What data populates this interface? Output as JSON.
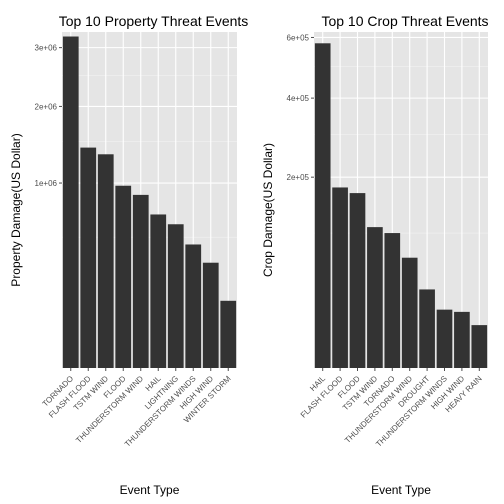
{
  "chart_data": [
    {
      "type": "bar",
      "title": "Top 10 Property Threat Events",
      "xlabel": "Event Type",
      "ylabel": "Property Damage(US Dollar)",
      "scale": "sqrt",
      "ylim": [
        0,
        3300000
      ],
      "yticks": [
        1000000,
        2000000,
        3000000
      ],
      "ytick_labels": [
        "1e+06",
        "2e+06",
        "3e+06"
      ],
      "grid": true,
      "categories": [
        "TORNADO",
        "FLASH FLOOD",
        "TSTM WIND",
        "FLOOD",
        "THUNDERSTORM WIND",
        "HAIL",
        "LIGHTNING",
        "THUNDERSTORM WINDS",
        "HIGH WIND",
        "WINTER STORM"
      ],
      "values": [
        3212000,
        1420000,
        1335000,
        971000,
        876000,
        689000,
        604000,
        446000,
        324000,
        132000
      ]
    },
    {
      "type": "bar",
      "title": "Top 10 Crop Threat Events",
      "xlabel": "Event Type",
      "ylabel": "Crop Damage(US Dollar)",
      "scale": "sqrt",
      "ylim": [
        0,
        620000
      ],
      "yticks": [
        200000,
        400000,
        600000
      ],
      "ytick_labels": [
        "2e+05",
        "4e+05",
        "6e+05"
      ],
      "grid": true,
      "categories": [
        "HAIL",
        "FLASH FLOOD",
        "FLOOD",
        "TSTM WIND",
        "TORNADO",
        "THUNDERSTORM WIND",
        "DROUGHT",
        "THUNDERSTORM WINDS",
        "HIGH WIND",
        "HEAVY RAIN"
      ],
      "values": [
        579000,
        179000,
        168000,
        109000,
        100000,
        66800,
        33900,
        18700,
        17300,
        10100
      ]
    }
  ]
}
